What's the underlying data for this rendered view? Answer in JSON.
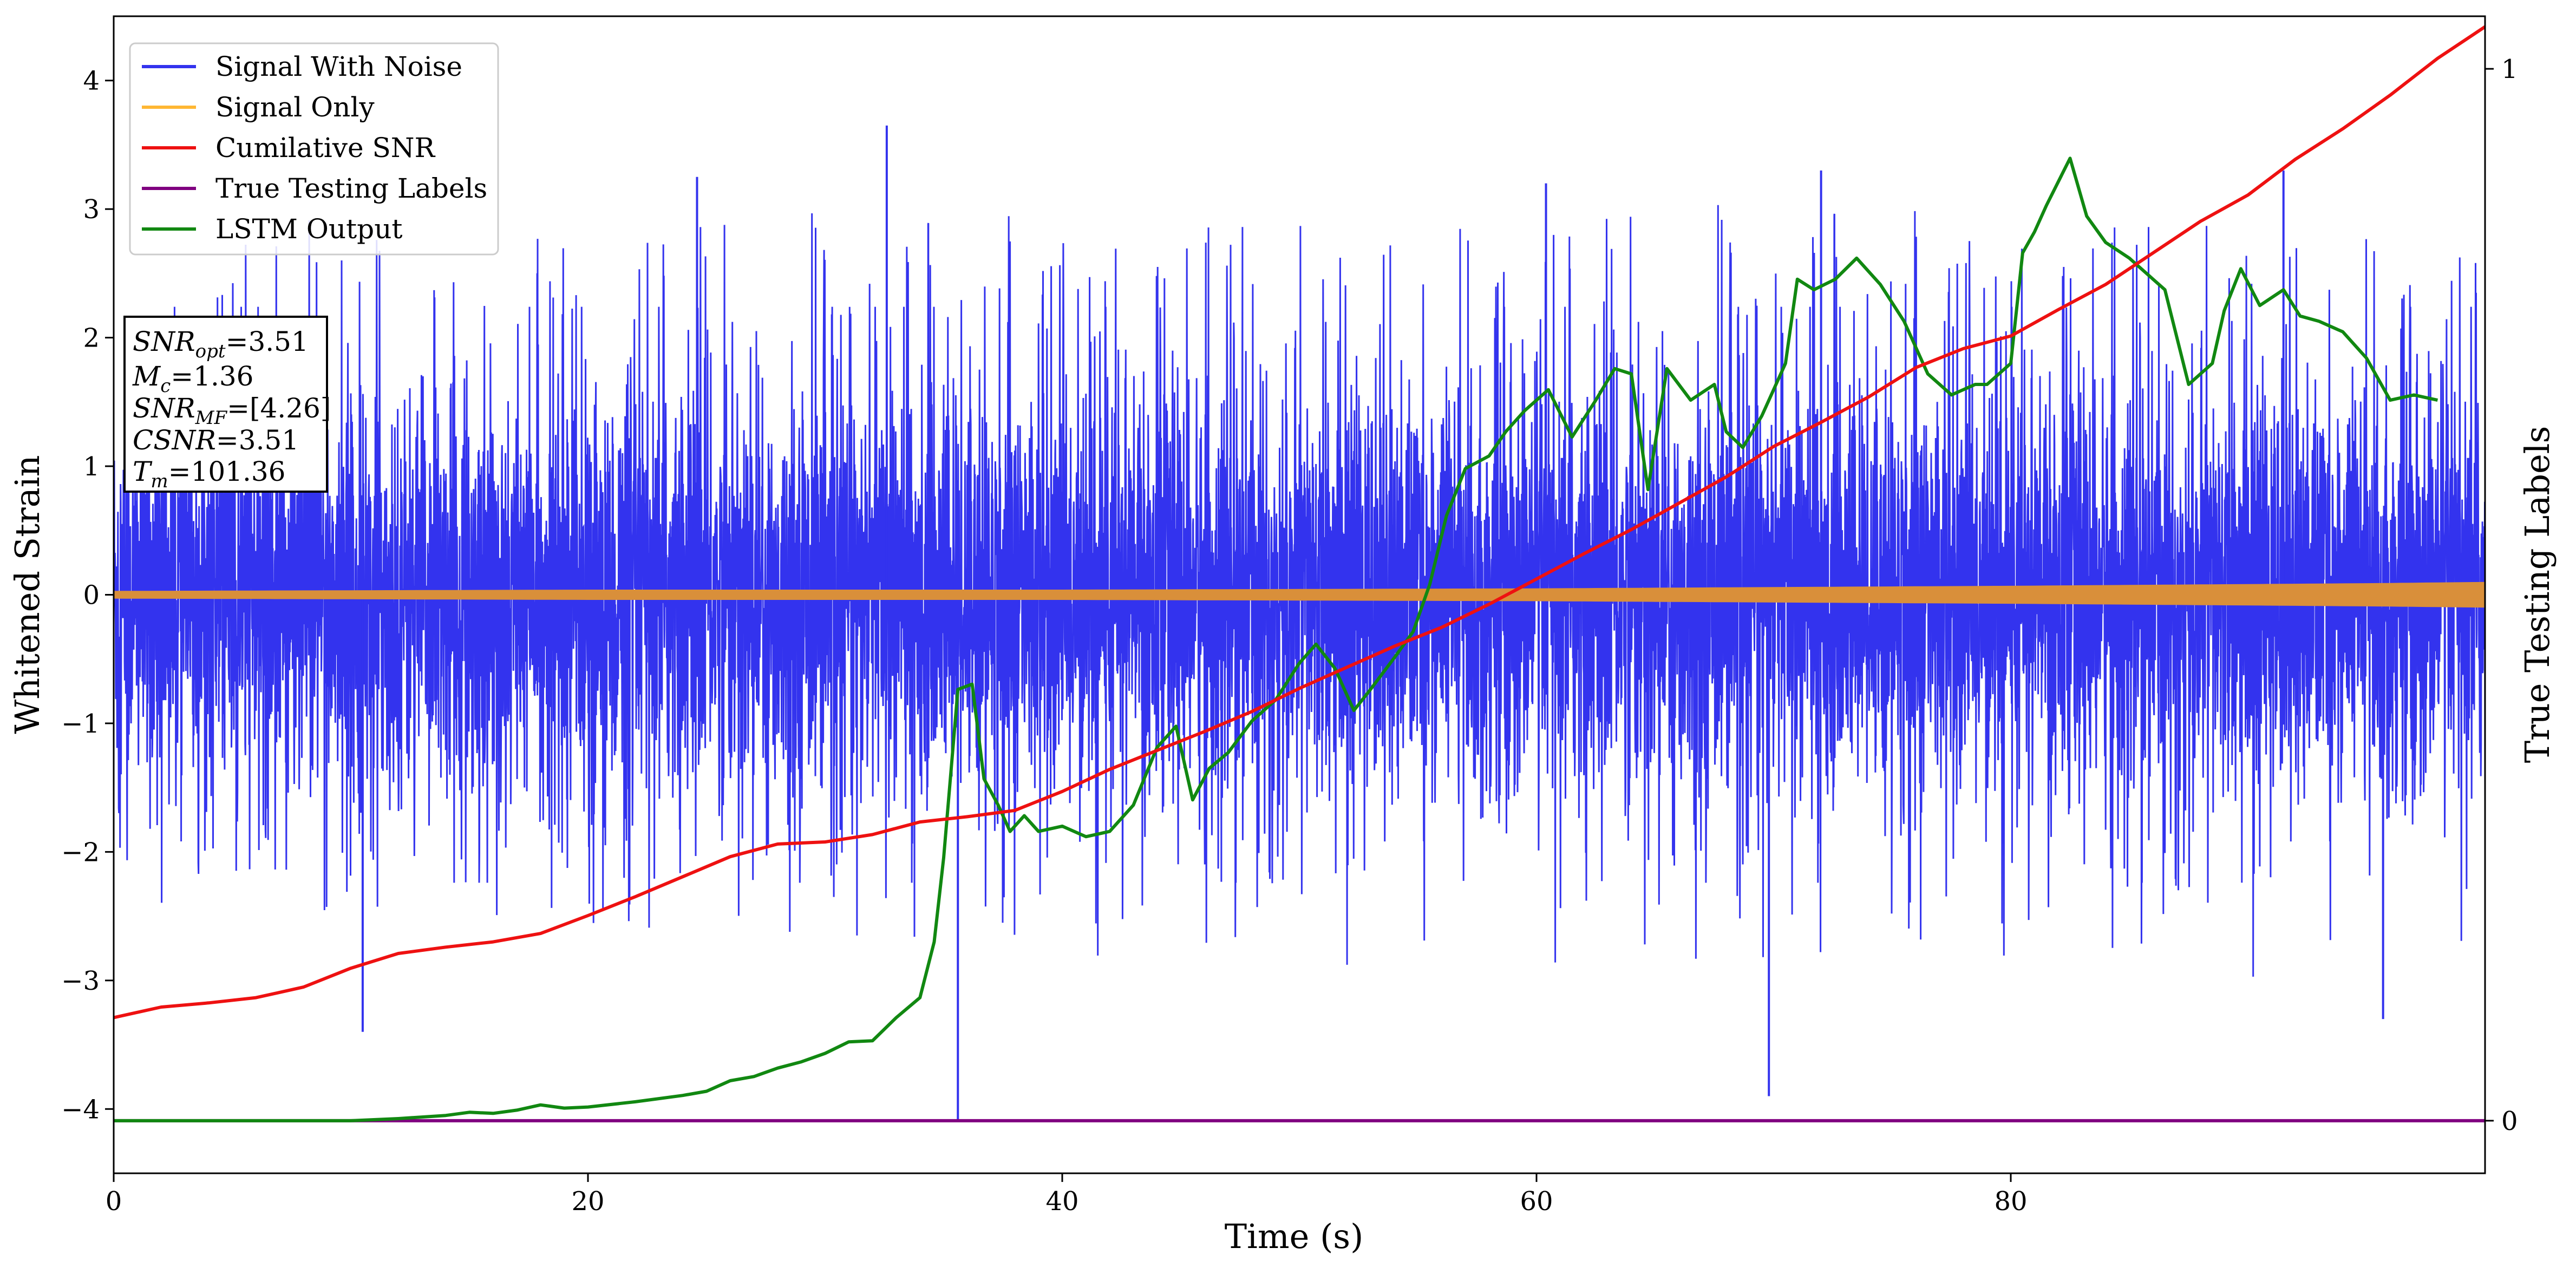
{
  "chart_data": {
    "type": "line",
    "title": "",
    "xlabel": "Time (s)",
    "ylabel": "Whitened Strain",
    "y2label": "True Testing Labels",
    "xlim": [
      0,
      100
    ],
    "ylim": [
      -4.5,
      4.5
    ],
    "y2lim": [
      -0.05,
      1.05
    ],
    "xticks": [
      "0",
      "20",
      "40",
      "60",
      "80"
    ],
    "yticks": [
      "4",
      "3",
      "2",
      "1",
      "0",
      "−1",
      "−2",
      "−3",
      "−4"
    ],
    "y2ticks": [
      "1",
      "0"
    ],
    "grid": false,
    "legend_position": "top-left",
    "legend": [
      "Signal With Noise",
      "Signal Only",
      "Cumilative SNR",
      "True Testing Labels",
      "LSTM Output"
    ],
    "colors": {
      "signal_with_noise": "#3333ee",
      "signal_only": "#ffb733",
      "signal_only_fill": "#d98f3a",
      "cumulative_snr": "#ee1111",
      "true_testing_labels": "#800080",
      "lstm_output": "#118811"
    },
    "annotation": {
      "snr_opt": {
        "base": "SNR",
        "sub": "opt",
        "value": "=3.51"
      },
      "m_c": {
        "base": "M",
        "sub": "c",
        "value": "=1.36"
      },
      "snr_mf": {
        "base": "SNR",
        "sub": "MF",
        "value": "=[4.26]"
      },
      "csnr": {
        "base": "CSNR",
        "sub": "",
        "value": "=3.51"
      },
      "t_m": {
        "base": "T",
        "sub": "m",
        "value": "=101.36"
      }
    },
    "series": [
      {
        "name": "Signal With Noise",
        "axis": "left",
        "style": "dense-noise",
        "band": [
          -1.6,
          1.6
        ],
        "envelope_x": [
          0,
          10,
          20,
          30,
          40,
          50,
          60,
          70,
          80,
          90,
          100
        ],
        "envelope_max": [
          2.6,
          3.0,
          2.8,
          3.0,
          3.0,
          3.0,
          2.9,
          3.1,
          3.0,
          3.0,
          2.7
        ],
        "envelope_min": [
          -2.5,
          -2.6,
          -2.6,
          -2.7,
          -2.9,
          -2.9,
          -2.9,
          -2.9,
          -2.9,
          -3.0,
          -2.7
        ],
        "spikes": [
          {
            "x": 32.6,
            "y": 3.65
          },
          {
            "x": 35.6,
            "y": -4.1
          },
          {
            "x": 10.5,
            "y": -3.4
          },
          {
            "x": 69.8,
            "y": -3.9
          },
          {
            "x": 72.0,
            "y": 3.3
          },
          {
            "x": 91.5,
            "y": 3.3
          },
          {
            "x": 95.7,
            "y": -3.3
          },
          {
            "x": 24.6,
            "y": 3.25
          },
          {
            "x": 60.4,
            "y": 3.2
          }
        ]
      },
      {
        "name": "Signal Only",
        "axis": "left",
        "style": "band",
        "x": [
          0,
          20,
          40,
          60,
          80,
          95,
          100
        ],
        "amplitude": [
          0.03,
          0.04,
          0.04,
          0.05,
          0.07,
          0.09,
          0.1
        ]
      },
      {
        "name": "Cumilative SNR",
        "axis": "right",
        "x": [
          0,
          2,
          4,
          6,
          8,
          10,
          12,
          14,
          16,
          18,
          20,
          22,
          24,
          26,
          28,
          30,
          32,
          34,
          36,
          38,
          40,
          42,
          44,
          46,
          48,
          50,
          52,
          54,
          56,
          58,
          60,
          62,
          64,
          66,
          68,
          70,
          72,
          74,
          76,
          78,
          80,
          82,
          84,
          86,
          88,
          90,
          92,
          94,
          96,
          98,
          100
        ],
        "values": [
          0.098,
          0.108,
          0.112,
          0.117,
          0.127,
          0.145,
          0.159,
          0.165,
          0.17,
          0.178,
          0.195,
          0.213,
          0.232,
          0.251,
          0.263,
          0.265,
          0.272,
          0.284,
          0.289,
          0.295,
          0.313,
          0.334,
          0.352,
          0.37,
          0.389,
          0.411,
          0.431,
          0.451,
          0.469,
          0.491,
          0.515,
          0.539,
          0.562,
          0.587,
          0.612,
          0.641,
          0.664,
          0.688,
          0.716,
          0.734,
          0.746,
          0.771,
          0.795,
          0.825,
          0.855,
          0.88,
          0.914,
          0.943,
          0.975,
          1.01,
          1.04
        ]
      },
      {
        "name": "True Testing Labels",
        "axis": "right",
        "x": [
          0,
          100
        ],
        "values": [
          0,
          0
        ]
      },
      {
        "name": "LSTM Output",
        "axis": "right",
        "x": [
          0,
          10,
          12,
          14,
          15,
          16,
          17,
          18,
          19,
          20,
          22,
          24,
          25,
          26,
          27,
          28,
          29,
          30,
          31,
          32,
          33,
          34,
          34.6,
          35.0,
          35.6,
          36.2,
          36.7,
          37.3,
          37.8,
          38.4,
          39.0,
          40.0,
          41.0,
          42.0,
          43.0,
          44.0,
          44.8,
          45.5,
          46.2,
          47.0,
          48.0,
          49.0,
          50.0,
          50.7,
          51.5,
          52.3,
          53.0,
          54.0,
          54.8,
          55.5,
          56.2,
          57.0,
          58.0,
          58.7,
          59.5,
          60.5,
          61.5,
          62.5,
          63.3,
          64.0,
          64.7,
          65.5,
          66.5,
          67.5,
          68.0,
          68.7,
          69.5,
          70.5,
          71.0,
          71.7,
          72.6,
          73.5,
          74.5,
          75.5,
          76.5,
          77.5,
          78.5,
          79.0,
          80.0,
          80.5,
          81.0,
          81.5,
          82.5,
          83.2,
          84.0,
          85.0,
          86.0,
          86.5,
          87.5,
          88.5,
          89.0,
          89.7,
          90.5,
          91.5,
          92.2,
          93.0,
          94.0,
          95.0,
          96.0,
          97.0,
          98.0
        ],
        "values": [
          0,
          0,
          0.002,
          0.005,
          0.008,
          0.007,
          0.01,
          0.015,
          0.012,
          0.013,
          0.018,
          0.024,
          0.028,
          0.038,
          0.042,
          0.05,
          0.056,
          0.064,
          0.075,
          0.076,
          0.098,
          0.117,
          0.17,
          0.25,
          0.41,
          0.415,
          0.325,
          0.3,
          0.275,
          0.29,
          0.275,
          0.28,
          0.27,
          0.275,
          0.3,
          0.355,
          0.375,
          0.305,
          0.335,
          0.35,
          0.38,
          0.4,
          0.435,
          0.453,
          0.43,
          0.39,
          0.41,
          0.44,
          0.465,
          0.51,
          0.575,
          0.62,
          0.632,
          0.655,
          0.675,
          0.695,
          0.65,
          0.685,
          0.715,
          0.71,
          0.6,
          0.715,
          0.685,
          0.7,
          0.655,
          0.64,
          0.67,
          0.72,
          0.8,
          0.79,
          0.8,
          0.82,
          0.795,
          0.76,
          0.71,
          0.69,
          0.7,
          0.7,
          0.72,
          0.825,
          0.845,
          0.87,
          0.915,
          0.86,
          0.835,
          0.82,
          0.8,
          0.79,
          0.7,
          0.72,
          0.77,
          0.81,
          0.775,
          0.79,
          0.765,
          0.76,
          0.75,
          0.725,
          0.685,
          0.69,
          0.685
        ]
      }
    ]
  }
}
